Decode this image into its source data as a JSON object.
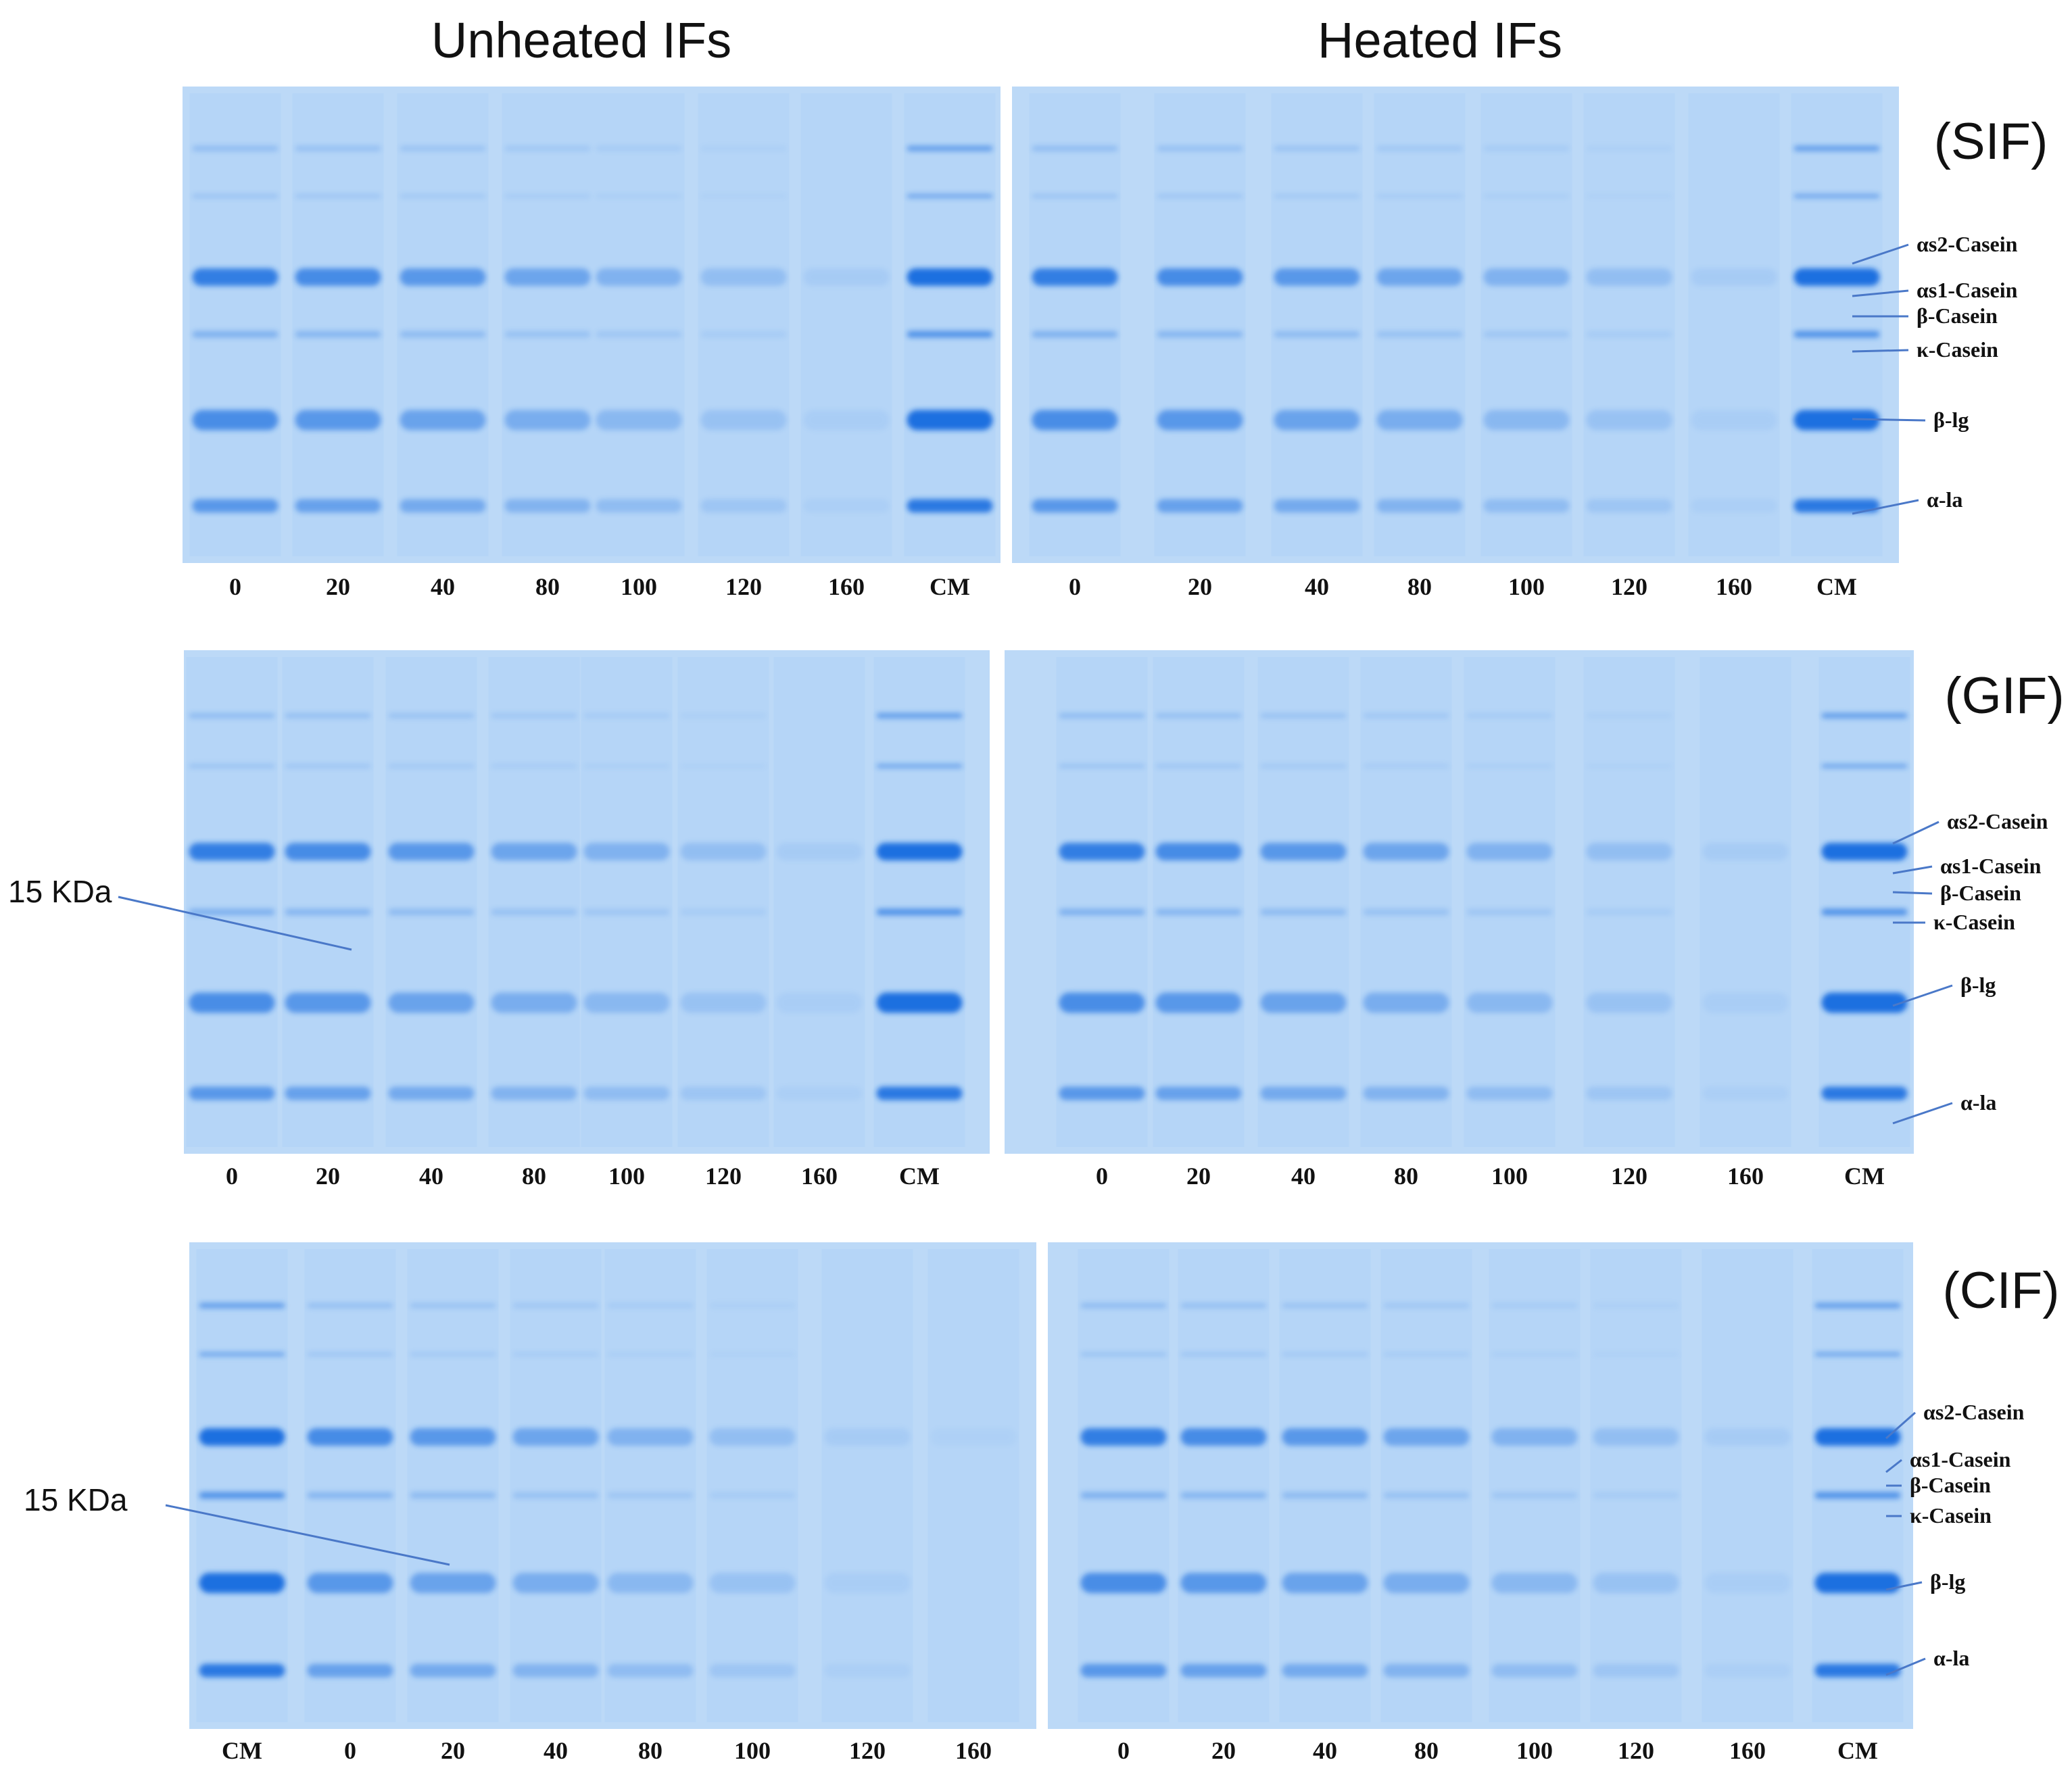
{
  "headers": {
    "unheated": "Unheated IFs",
    "heated": "Heated IFs"
  },
  "colors": {
    "gel_background": "#bcd9f7",
    "band": "#1e6fe0",
    "band_strong": "#0b5ce0",
    "leader_line": "#4a78c8"
  },
  "panels": [
    {
      "tag": "(SIF)",
      "unheated_lanes": [
        "0",
        "20",
        "40",
        "80",
        "100",
        "120",
        "160",
        "CM"
      ],
      "heated_lanes": [
        "0",
        "20",
        "40",
        "80",
        "100",
        "120",
        "160",
        "CM"
      ],
      "proteins": [
        "αs2-Casein",
        "αs1-Casein",
        "β-Casein",
        "κ-Casein",
        "β-lg",
        "α-la"
      ]
    },
    {
      "tag": "(GIF)",
      "unheated_lanes": [
        "0",
        "20",
        "40",
        "80",
        "100",
        "120",
        "160",
        "CM"
      ],
      "heated_lanes": [
        "0",
        "20",
        "40",
        "80",
        "100",
        "120",
        "160",
        "CM"
      ],
      "proteins": [
        "αs2-Casein",
        "αs1-Casein",
        "β-Casein",
        "κ-Casein",
        "β-lg",
        "α-la"
      ],
      "marker": "15 KDa"
    },
    {
      "tag": "(CIF)",
      "unheated_lanes": [
        "CM",
        "0",
        "20",
        "40",
        "80",
        "100",
        "120",
        "160"
      ],
      "heated_lanes": [
        "0",
        "20",
        "40",
        "80",
        "100",
        "120",
        "160",
        "CM"
      ],
      "proteins": [
        "αs2-Casein",
        "αs1-Casein",
        "β-Casein",
        "κ-Casein",
        "β-lg",
        "α-la"
      ],
      "marker": "15 KDa"
    }
  ]
}
